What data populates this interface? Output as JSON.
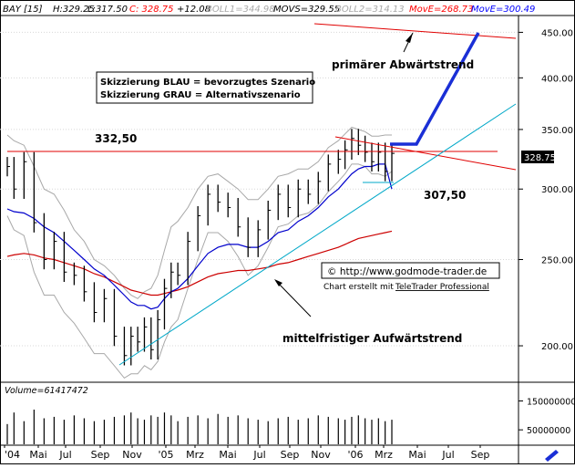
{
  "header": {
    "symbol": "BAY [15]",
    "high": "H:329.25",
    "low": "L:317.50",
    "close": "C: 328.75",
    "change": "+12.08",
    "boll1": "BOLL1=344.98",
    "movs": "MOVS=329.55",
    "boll2": "BOLL2=314.13",
    "move_red": "MovE=268.73",
    "move_blue": "MovE=300.49"
  },
  "volume_label": "Volume=61417472",
  "legend_box": {
    "line1": "Skizzierung BLAU = bevorzugtes Szenario",
    "line2": "Skizzierung GRAU = Alternativszenario"
  },
  "annotations": {
    "resistance": "332,50",
    "support": "307,50",
    "primary_trend": "primärer Abwärtstrend",
    "medium_trend": "mittelfristiger Aufwärtstrend",
    "copyright": "© http://www.godmode-trader.de",
    "created_by": "Chart erstellt mit",
    "software": "TeleTrader Professional",
    "last_price": "328.75"
  },
  "colors": {
    "price": "#000000",
    "bollinger": "#a8a8a8",
    "ema_red": "#cc0000",
    "ema_blue": "#0000cc",
    "scenario_blue": "#1a2fd6",
    "uptrend": "#00a8c8",
    "resistance_line": "#e00000",
    "header_red": "#ff0000",
    "header_blue": "#0000ff",
    "background": "#ffffff"
  },
  "chart_data": {
    "type": "line",
    "title": "BAY [15]",
    "x_ticks": [
      "'04",
      "Mai",
      "Jul",
      "Sep",
      "Nov",
      "'05",
      "Mrz",
      "Mai",
      "Jul",
      "Sep",
      "Nov",
      "'06",
      "Mrz",
      "Mai",
      "Jul",
      "Sep"
    ],
    "y_ticks": [
      200,
      250,
      300,
      350,
      400,
      450
    ],
    "y_scale": "log",
    "ylim": [
      182,
      470
    ],
    "volume_ticks": [
      "150000000",
      "50000000"
    ],
    "volume_ylim": [
      0,
      180000000
    ],
    "x": [
      "2004-01-02",
      "2004-01-16",
      "2004-02-06",
      "2004-02-27",
      "2004-03-19",
      "2004-04-09",
      "2004-04-30",
      "2004-05-21",
      "2004-06-11",
      "2004-07-02",
      "2004-07-23",
      "2004-08-13",
      "2004-09-03",
      "2004-09-17",
      "2004-10-01",
      "2004-10-15",
      "2004-10-29",
      "2004-11-12",
      "2004-11-26",
      "2004-12-10",
      "2004-12-24",
      "2005-01-14",
      "2005-02-04",
      "2005-02-25",
      "2005-03-18",
      "2005-04-08",
      "2005-04-29",
      "2005-05-20",
      "2005-06-10",
      "2005-07-01",
      "2005-07-22",
      "2005-08-12",
      "2005-09-02",
      "2005-09-23",
      "2005-10-14",
      "2005-11-04",
      "2005-11-25",
      "2005-12-09",
      "2005-12-23",
      "2006-01-06",
      "2006-01-20",
      "2006-02-03",
      "2006-02-17",
      "2006-03-03",
      "2006-03-17"
    ],
    "series": [
      {
        "name": "BAY [15]",
        "values": [
          318,
          300,
          322,
          275,
          250,
          262,
          242,
          240,
          230,
          218,
          226,
          205,
          195,
          205,
          202,
          210,
          198,
          214,
          232,
          242,
          240,
          262,
          280,
          296,
          290,
          286,
          272,
          258,
          270,
          284,
          296,
          286,
          300,
          296,
          306,
          320,
          324,
          332,
          342,
          336,
          330,
          322,
          330,
          314,
          329
        ]
      },
      {
        "name": "BOLL1",
        "values": [
          345,
          340,
          336,
          318,
          300,
          296,
          284,
          270,
          262,
          250,
          246,
          240,
          232,
          228,
          226,
          230,
          232,
          240,
          256,
          272,
          276,
          286,
          300,
          310,
          312,
          306,
          300,
          292,
          292,
          300,
          310,
          312,
          316,
          316,
          322,
          334,
          340,
          346,
          352,
          350,
          348,
          344,
          344,
          345,
          345
        ]
      },
      {
        "name": "BOLL2",
        "values": [
          280,
          270,
          266,
          242,
          228,
          228,
          218,
          212,
          204,
          196,
          196,
          190,
          184,
          186,
          186,
          190,
          188,
          192,
          202,
          210,
          214,
          232,
          250,
          268,
          268,
          262,
          252,
          240,
          246,
          258,
          272,
          274,
          280,
          282,
          288,
          298,
          306,
          312,
          320,
          320,
          318,
          312,
          312,
          310,
          314
        ]
      },
      {
        "name": "MovE",
        "values": [
          252,
          253,
          254,
          253,
          251,
          250,
          248,
          246,
          244,
          241,
          239,
          236,
          233,
          231,
          230,
          229,
          228,
          228,
          229,
          230,
          231,
          233,
          236,
          239,
          241,
          242,
          243,
          243,
          244,
          245,
          247,
          248,
          250,
          252,
          254,
          256,
          258,
          260,
          262,
          264,
          265,
          266,
          267,
          268,
          269
        ]
      },
      {
        "name": "MovE",
        "values": [
          285,
          283,
          282,
          278,
          272,
          268,
          262,
          256,
          250,
          244,
          240,
          234,
          228,
          224,
          222,
          222,
          220,
          221,
          226,
          230,
          232,
          238,
          246,
          254,
          258,
          260,
          260,
          258,
          258,
          262,
          268,
          270,
          276,
          280,
          286,
          294,
          300,
          306,
          312,
          316,
          318,
          318,
          320,
          320,
          300
        ]
      }
    ],
    "volume": [
      70,
      110,
      80,
      120,
      90,
      95,
      85,
      100,
      90,
      80,
      85,
      95,
      100,
      110,
      90,
      85,
      100,
      95,
      110,
      100,
      80,
      95,
      100,
      90,
      105,
      95,
      100,
      90,
      85,
      80,
      90,
      95,
      85,
      90,
      100,
      95,
      90,
      85,
      95,
      100,
      90,
      85,
      90,
      80,
      85
    ]
  }
}
